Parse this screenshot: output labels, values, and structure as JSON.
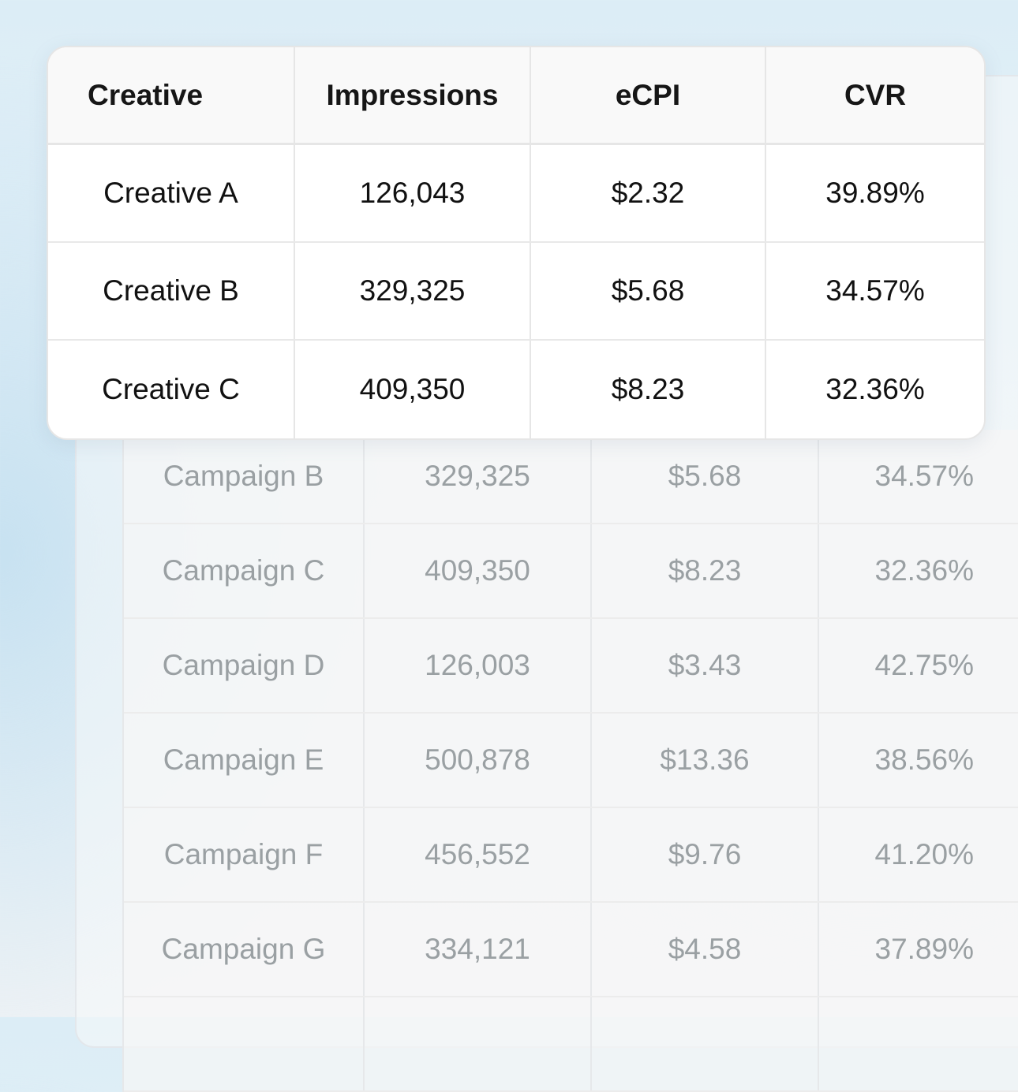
{
  "creatives_table": {
    "headers": [
      "Creative",
      "Impressions",
      "eCPI",
      "CVR"
    ],
    "rows": [
      [
        "Creative A",
        "126,043",
        "$2.32",
        "39.89%"
      ],
      [
        "Creative B",
        "329,325",
        "$5.68",
        "34.57%"
      ],
      [
        "Creative C",
        "409,350",
        "$8.23",
        "32.36%"
      ]
    ]
  },
  "campaigns_table": {
    "rows": [
      [
        "Campaign B",
        "329,325",
        "$5.68",
        "34.57%"
      ],
      [
        "Campaign C",
        "409,350",
        "$8.23",
        "32.36%"
      ],
      [
        "Campaign D",
        "126,003",
        "$3.43",
        "42.75%"
      ],
      [
        "Campaign E",
        "500,878",
        "$13.36",
        "38.56%"
      ],
      [
        "Campaign F",
        "456,552",
        "$9.76",
        "41.20%"
      ],
      [
        "Campaign G",
        "334,121",
        "$4.58",
        "37.89%"
      ],
      [
        "",
        "",
        "",
        ""
      ]
    ]
  }
}
